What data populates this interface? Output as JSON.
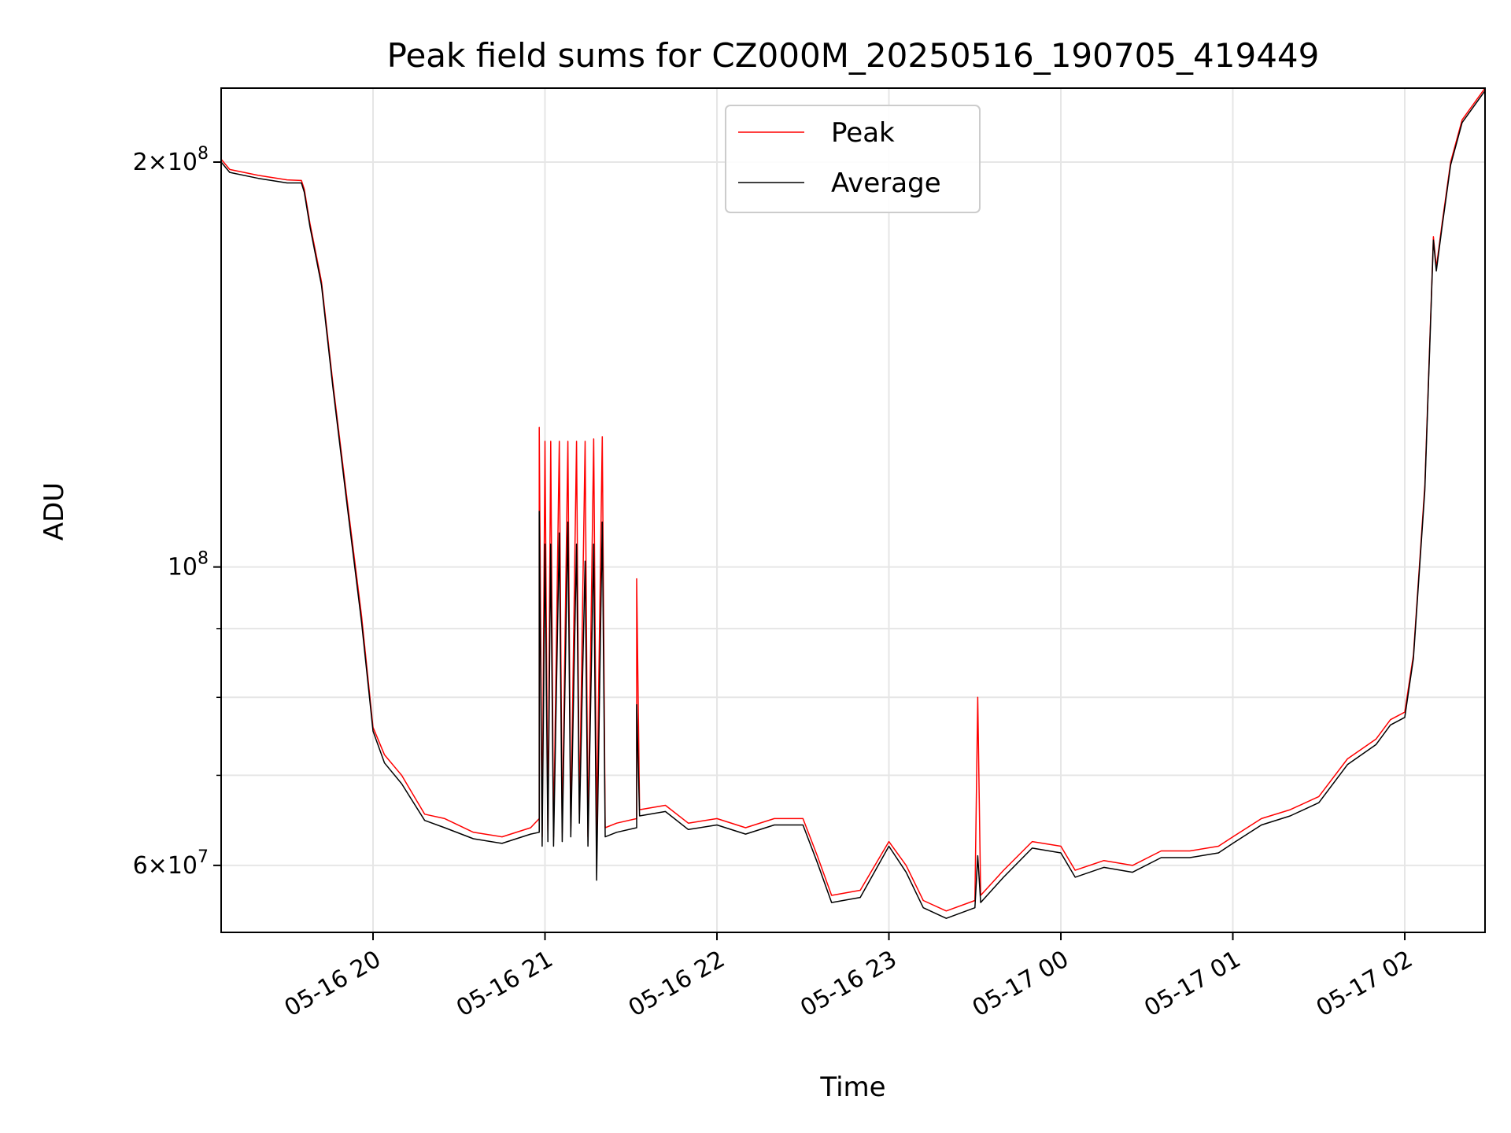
{
  "chart_data": {
    "type": "line",
    "title": "Peak field sums for CZ000M_20250516_190705_419449",
    "xlabel": "Time",
    "ylabel": "ADU",
    "y_scale": "log",
    "ylim": [
      53500000,
      227000000
    ],
    "xlim": [
      "2025-05-16T19:07:00",
      "2025-05-17T02:28:00"
    ],
    "grid": true,
    "legend": {
      "placement": "top-center"
    },
    "x_ticks": [
      "2025-05-16T20:00",
      "2025-05-16T21:00",
      "2025-05-16T22:00",
      "2025-05-16T23:00",
      "2025-05-17T00:00",
      "2025-05-17T01:00",
      "2025-05-17T02:00"
    ],
    "x_tick_labels": [
      "05-16 20",
      "05-16 21",
      "05-16 22",
      "05-16 23",
      "05-17 00",
      "05-17 01",
      "05-17 02"
    ],
    "y_ticks_labeled": [
      {
        "value": 200000000,
        "mantissa": "2",
        "exponent": "8"
      },
      {
        "value": 100000000,
        "mantissa": "",
        "exponent": "8"
      },
      {
        "value": 60000000,
        "mantissa": "6",
        "exponent": "7"
      }
    ],
    "y_ticks_minor": [
      70000000,
      80000000,
      90000000
    ],
    "series": [
      {
        "name": "Peak",
        "color": "#ff0000",
        "points": [
          [
            "2025-05-16T19:07",
            201000000
          ],
          [
            "2025-05-16T19:10",
            197500000
          ],
          [
            "2025-05-16T19:20",
            195500000
          ],
          [
            "2025-05-16T19:30",
            194000000
          ],
          [
            "2025-05-16T19:35",
            193800000
          ],
          [
            "2025-05-16T19:36",
            191000000
          ],
          [
            "2025-05-16T19:38",
            180000000
          ],
          [
            "2025-05-16T19:42",
            163000000
          ],
          [
            "2025-05-16T19:46",
            137000000
          ],
          [
            "2025-05-16T19:51",
            112000000
          ],
          [
            "2025-05-16T19:56",
            92000000
          ],
          [
            "2025-05-16T20:00",
            76000000
          ],
          [
            "2025-05-16T20:04",
            72500000
          ],
          [
            "2025-05-16T20:10",
            70000000
          ],
          [
            "2025-05-16T20:18",
            65500000
          ],
          [
            "2025-05-16T20:25",
            65000000
          ],
          [
            "2025-05-16T20:35",
            63500000
          ],
          [
            "2025-05-16T20:45",
            63000000
          ],
          [
            "2025-05-16T20:55",
            64000000
          ],
          [
            "2025-05-16T20:58",
            65000000
          ],
          [
            "2025-05-16T20:58",
            127000000
          ],
          [
            "2025-05-16T20:59",
            63000000
          ],
          [
            "2025-05-16T21:00",
            124000000
          ],
          [
            "2025-05-16T21:01",
            63500000
          ],
          [
            "2025-05-16T21:02",
            124000000
          ],
          [
            "2025-05-16T21:03",
            63000000
          ],
          [
            "2025-05-16T21:05",
            124000000
          ],
          [
            "2025-05-16T21:06",
            63500000
          ],
          [
            "2025-05-16T21:08",
            124000000
          ],
          [
            "2025-05-16T21:09",
            64000000
          ],
          [
            "2025-05-16T21:11",
            124000000
          ],
          [
            "2025-05-16T21:12",
            65500000
          ],
          [
            "2025-05-16T21:14",
            124000000
          ],
          [
            "2025-05-16T21:15",
            63000000
          ],
          [
            "2025-05-16T21:17",
            124500000
          ],
          [
            "2025-05-16T21:18",
            63500000
          ],
          [
            "2025-05-16T21:20",
            125000000
          ],
          [
            "2025-05-16T21:21",
            64000000
          ],
          [
            "2025-05-16T21:25",
            64500000
          ],
          [
            "2025-05-16T21:32",
            65000000
          ],
          [
            "2025-05-16T21:32",
            98000000
          ],
          [
            "2025-05-16T21:33",
            66000000
          ],
          [
            "2025-05-16T21:42",
            66500000
          ],
          [
            "2025-05-16T21:50",
            64500000
          ],
          [
            "2025-05-16T22:00",
            65000000
          ],
          [
            "2025-05-16T22:10",
            64000000
          ],
          [
            "2025-05-16T22:20",
            65000000
          ],
          [
            "2025-05-16T22:30",
            65000000
          ],
          [
            "2025-05-16T22:35",
            61000000
          ],
          [
            "2025-05-16T22:40",
            57000000
          ],
          [
            "2025-05-16T22:50",
            57500000
          ],
          [
            "2025-05-16T23:00",
            62500000
          ],
          [
            "2025-05-16T23:06",
            60000000
          ],
          [
            "2025-05-16T23:12",
            56500000
          ],
          [
            "2025-05-16T23:20",
            55500000
          ],
          [
            "2025-05-16T23:30",
            56500000
          ],
          [
            "2025-05-16T23:31",
            80000000
          ],
          [
            "2025-05-16T23:32",
            57000000
          ],
          [
            "2025-05-16T23:40",
            59500000
          ],
          [
            "2025-05-16T23:50",
            62500000
          ],
          [
            "2025-05-17T00:00",
            62000000
          ],
          [
            "2025-05-17T00:05",
            59500000
          ],
          [
            "2025-05-17T00:15",
            60500000
          ],
          [
            "2025-05-17T00:25",
            60000000
          ],
          [
            "2025-05-17T00:35",
            61500000
          ],
          [
            "2025-05-17T00:45",
            61500000
          ],
          [
            "2025-05-17T00:55",
            62000000
          ],
          [
            "2025-05-17T01:00",
            63000000
          ],
          [
            "2025-05-17T01:10",
            65000000
          ],
          [
            "2025-05-17T01:20",
            66000000
          ],
          [
            "2025-05-17T01:30",
            67500000
          ],
          [
            "2025-05-17T01:40",
            72000000
          ],
          [
            "2025-05-17T01:50",
            74500000
          ],
          [
            "2025-05-17T01:55",
            77000000
          ],
          [
            "2025-05-17T02:00",
            78000000
          ],
          [
            "2025-05-17T02:03",
            86000000
          ],
          [
            "2025-05-17T02:07",
            115000000
          ],
          [
            "2025-05-17T02:10",
            176000000
          ],
          [
            "2025-05-17T02:11",
            167000000
          ],
          [
            "2025-05-17T02:13",
            180000000
          ],
          [
            "2025-05-17T02:16",
            200000000
          ],
          [
            "2025-05-17T02:20",
            215000000
          ],
          [
            "2025-05-17T02:28",
            227000000
          ]
        ]
      },
      {
        "name": "Average",
        "color": "#000000",
        "points": [
          [
            "2025-05-16T19:07",
            200000000
          ],
          [
            "2025-05-16T19:10",
            196500000
          ],
          [
            "2025-05-16T19:20",
            194500000
          ],
          [
            "2025-05-16T19:30",
            193000000
          ],
          [
            "2025-05-16T19:35",
            193000000
          ],
          [
            "2025-05-16T19:36",
            190000000
          ],
          [
            "2025-05-16T19:38",
            179000000
          ],
          [
            "2025-05-16T19:42",
            162000000
          ],
          [
            "2025-05-16T19:46",
            136000000
          ],
          [
            "2025-05-16T19:51",
            111000000
          ],
          [
            "2025-05-16T19:56",
            91000000
          ],
          [
            "2025-05-16T20:00",
            75500000
          ],
          [
            "2025-05-16T20:04",
            71500000
          ],
          [
            "2025-05-16T20:10",
            69000000
          ],
          [
            "2025-05-16T20:18",
            64800000
          ],
          [
            "2025-05-16T20:25",
            64000000
          ],
          [
            "2025-05-16T20:35",
            62800000
          ],
          [
            "2025-05-16T20:45",
            62300000
          ],
          [
            "2025-05-16T20:55",
            63300000
          ],
          [
            "2025-05-16T20:58",
            63500000
          ],
          [
            "2025-05-16T20:58",
            110000000
          ],
          [
            "2025-05-16T20:59",
            62000000
          ],
          [
            "2025-05-16T21:00",
            104000000
          ],
          [
            "2025-05-16T21:01",
            62500000
          ],
          [
            "2025-05-16T21:02",
            104000000
          ],
          [
            "2025-05-16T21:03",
            62000000
          ],
          [
            "2025-05-16T21:05",
            106000000
          ],
          [
            "2025-05-16T21:06",
            62500000
          ],
          [
            "2025-05-16T21:08",
            108000000
          ],
          [
            "2025-05-16T21:09",
            63000000
          ],
          [
            "2025-05-16T21:11",
            104000000
          ],
          [
            "2025-05-16T21:12",
            64500000
          ],
          [
            "2025-05-16T21:14",
            101000000
          ],
          [
            "2025-05-16T21:15",
            62000000
          ],
          [
            "2025-05-16T21:17",
            104000000
          ],
          [
            "2025-05-16T21:18",
            58500000
          ],
          [
            "2025-05-16T21:20",
            108000000
          ],
          [
            "2025-05-16T21:21",
            63000000
          ],
          [
            "2025-05-16T21:25",
            63500000
          ],
          [
            "2025-05-16T21:32",
            64000000
          ],
          [
            "2025-05-16T21:32",
            79000000
          ],
          [
            "2025-05-16T21:33",
            65300000
          ],
          [
            "2025-05-16T21:42",
            65800000
          ],
          [
            "2025-05-16T21:50",
            63800000
          ],
          [
            "2025-05-16T22:00",
            64300000
          ],
          [
            "2025-05-16T22:10",
            63300000
          ],
          [
            "2025-05-16T22:20",
            64300000
          ],
          [
            "2025-05-16T22:30",
            64300000
          ],
          [
            "2025-05-16T22:35",
            60300000
          ],
          [
            "2025-05-16T22:40",
            56300000
          ],
          [
            "2025-05-16T22:50",
            56800000
          ],
          [
            "2025-05-16T23:00",
            62000000
          ],
          [
            "2025-05-16T23:06",
            59300000
          ],
          [
            "2025-05-16T23:12",
            55800000
          ],
          [
            "2025-05-16T23:20",
            54800000
          ],
          [
            "2025-05-16T23:30",
            55800000
          ],
          [
            "2025-05-16T23:31",
            61000000
          ],
          [
            "2025-05-16T23:32",
            56300000
          ],
          [
            "2025-05-16T23:40",
            58800000
          ],
          [
            "2025-05-16T23:50",
            61800000
          ],
          [
            "2025-05-17T00:00",
            61300000
          ],
          [
            "2025-05-17T00:05",
            58800000
          ],
          [
            "2025-05-17T00:15",
            59800000
          ],
          [
            "2025-05-17T00:25",
            59300000
          ],
          [
            "2025-05-17T00:35",
            60800000
          ],
          [
            "2025-05-17T00:45",
            60800000
          ],
          [
            "2025-05-17T00:55",
            61300000
          ],
          [
            "2025-05-17T01:00",
            62300000
          ],
          [
            "2025-05-17T01:10",
            64300000
          ],
          [
            "2025-05-17T01:20",
            65300000
          ],
          [
            "2025-05-17T01:30",
            66800000
          ],
          [
            "2025-05-17T01:40",
            71300000
          ],
          [
            "2025-05-17T01:50",
            73800000
          ],
          [
            "2025-05-17T01:55",
            76300000
          ],
          [
            "2025-05-17T02:00",
            77300000
          ],
          [
            "2025-05-17T02:03",
            85500000
          ],
          [
            "2025-05-17T02:07",
            114000000
          ],
          [
            "2025-05-17T02:10",
            175000000
          ],
          [
            "2025-05-17T02:11",
            166000000
          ],
          [
            "2025-05-17T02:13",
            179000000
          ],
          [
            "2025-05-17T02:16",
            199000000
          ],
          [
            "2025-05-17T02:20",
            214000000
          ],
          [
            "2025-05-17T02:28",
            226000000
          ]
        ]
      }
    ]
  }
}
